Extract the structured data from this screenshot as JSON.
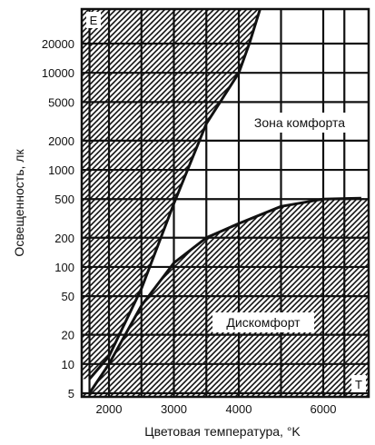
{
  "chart_data": {
    "type": "area",
    "x_scale": "categorical-temperature",
    "y_scale": "log",
    "xlabel": "Цветовая температура, °K",
    "ylabel": "Освещенность, лк",
    "x_ticks": [
      "2000",
      "3000",
      "4000",
      "6000"
    ],
    "y_ticks": [
      "5",
      "10",
      "20",
      "50",
      "100",
      "200",
      "500",
      "1000",
      "2000",
      "5000",
      "10000",
      "20000"
    ],
    "xlim": [
      1700,
      6900
    ],
    "ylim": [
      5,
      45000
    ],
    "grid": true,
    "corner_labels": {
      "y_axis_letter": "E",
      "x_axis_letter": "T"
    },
    "annotations": [
      {
        "text": "Зона комфорта",
        "x": 5800,
        "y": 3000
      },
      {
        "text": "Дискомфорт",
        "x": 5000,
        "y": 30
      }
    ],
    "series": [
      {
        "boundary": "upper",
        "points": [
          [
            1700,
            7
          ],
          [
            2000,
            12
          ],
          [
            2500,
            60
          ],
          [
            3000,
            450
          ],
          [
            3500,
            3000
          ],
          [
            4000,
            10000
          ],
          [
            4250,
            20000
          ],
          [
            4500,
            45000
          ]
        ]
      },
      {
        "boundary": "lower",
        "points": [
          [
            1700,
            5
          ],
          [
            2000,
            10
          ],
          [
            2500,
            40
          ],
          [
            3000,
            110
          ],
          [
            3500,
            200
          ],
          [
            4000,
            280
          ],
          [
            5000,
            420
          ],
          [
            6000,
            500
          ],
          [
            6900,
            510
          ]
        ]
      }
    ]
  }
}
